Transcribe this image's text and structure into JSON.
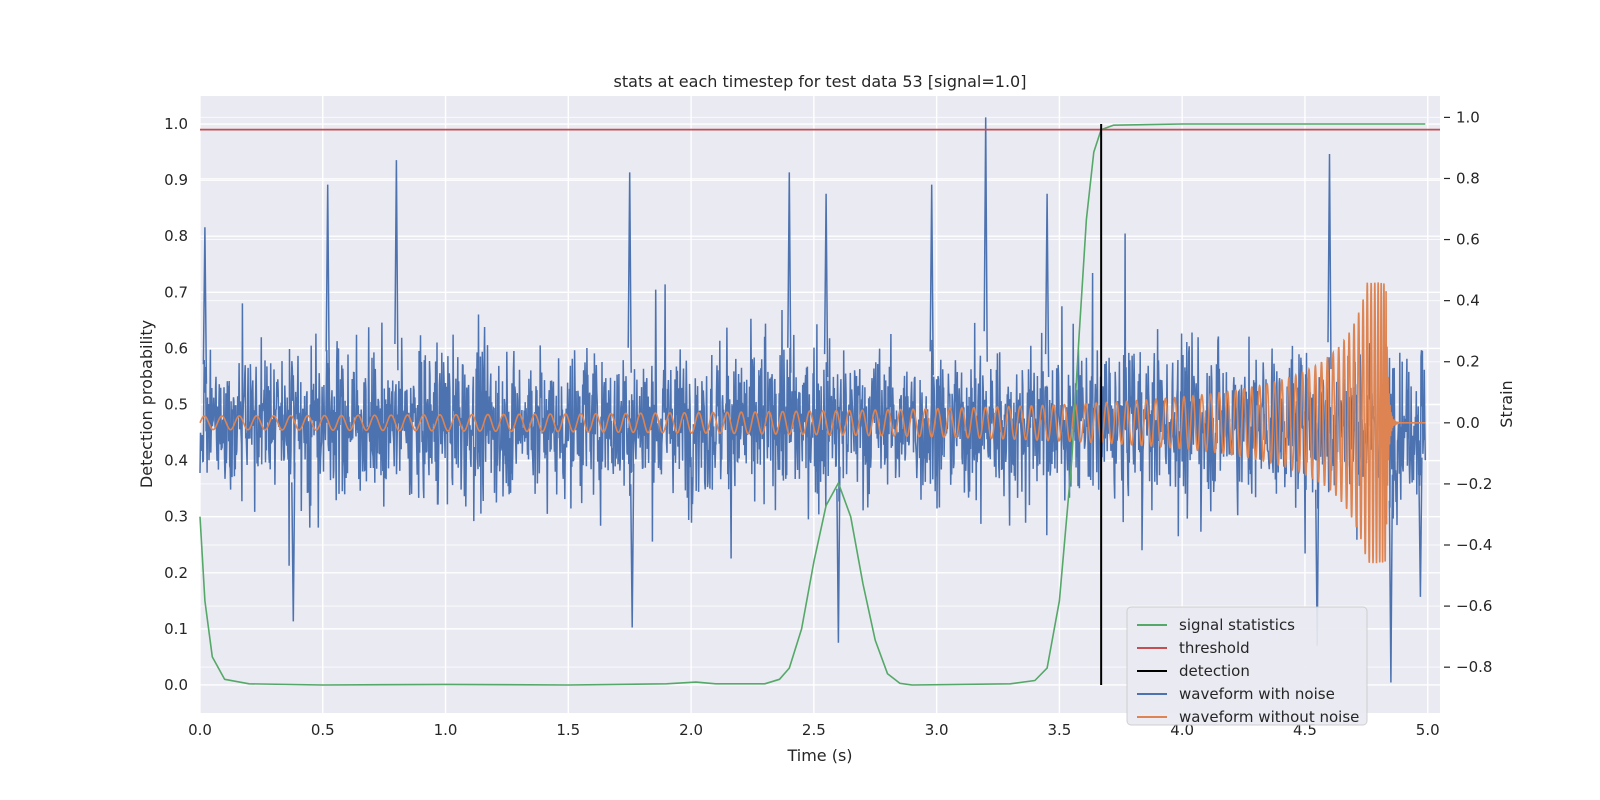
{
  "chart_data": {
    "type": "line",
    "title": "stats at each timestep for test data 53 [signal=1.0]",
    "xlabel": "Time (s)",
    "ylabel_left": "Detection probability",
    "ylabel_right": "Strain",
    "xlim": [
      0.0,
      5.05
    ],
    "ylim_left": [
      -0.05,
      1.05
    ],
    "ylim_right": [
      -0.95,
      1.07
    ],
    "x_ticks": [
      0.0,
      0.5,
      1.0,
      1.5,
      2.0,
      2.5,
      3.0,
      3.5,
      4.0,
      4.5,
      5.0
    ],
    "x_tick_labels": [
      "0.0",
      "0.5",
      "1.0",
      "1.5",
      "2.0",
      "2.5",
      "3.0",
      "3.5",
      "4.0",
      "4.5",
      "5.0"
    ],
    "y_left_ticks": [
      0.0,
      0.1,
      0.2,
      0.3,
      0.4,
      0.5,
      0.6,
      0.7,
      0.8,
      0.9,
      1.0
    ],
    "y_left_tick_labels": [
      "0.0",
      "0.1",
      "0.2",
      "0.3",
      "0.4",
      "0.5",
      "0.6",
      "0.7",
      "0.8",
      "0.9",
      "1.0"
    ],
    "y_right_ticks": [
      -0.8,
      -0.6,
      -0.4,
      -0.2,
      0.0,
      0.2,
      0.4,
      0.6,
      0.8,
      1.0
    ],
    "y_right_tick_labels": [
      "−0.8",
      "−0.6",
      "−0.4",
      "−0.2",
      "0.0",
      "0.2",
      "0.4",
      "0.6",
      "0.8",
      "1.0"
    ],
    "grid": true,
    "legend_position": "lower-right",
    "threshold": 0.99,
    "detection_time": 3.67,
    "series": [
      {
        "name": "signal statistics",
        "axis": "left",
        "color": "#55a868",
        "points": [
          [
            0.0,
            0.3
          ],
          [
            0.02,
            0.15
          ],
          [
            0.05,
            0.05
          ],
          [
            0.1,
            0.01
          ],
          [
            0.2,
            0.002
          ],
          [
            0.5,
            0.0
          ],
          [
            1.0,
            0.001
          ],
          [
            1.5,
            0.0
          ],
          [
            1.9,
            0.002
          ],
          [
            2.02,
            0.005
          ],
          [
            2.1,
            0.002
          ],
          [
            2.3,
            0.002
          ],
          [
            2.36,
            0.01
          ],
          [
            2.4,
            0.03
          ],
          [
            2.45,
            0.1
          ],
          [
            2.5,
            0.22
          ],
          [
            2.55,
            0.32
          ],
          [
            2.6,
            0.36
          ],
          [
            2.65,
            0.3
          ],
          [
            2.7,
            0.18
          ],
          [
            2.75,
            0.08
          ],
          [
            2.8,
            0.02
          ],
          [
            2.85,
            0.003
          ],
          [
            2.9,
            0.0
          ],
          [
            3.3,
            0.002
          ],
          [
            3.4,
            0.008
          ],
          [
            3.45,
            0.03
          ],
          [
            3.5,
            0.15
          ],
          [
            3.55,
            0.4
          ],
          [
            3.58,
            0.62
          ],
          [
            3.61,
            0.83
          ],
          [
            3.64,
            0.95
          ],
          [
            3.67,
            0.99
          ],
          [
            3.72,
            0.998
          ],
          [
            4.0,
            1.0
          ],
          [
            4.99,
            1.0
          ]
        ]
      },
      {
        "name": "threshold",
        "axis": "left",
        "color": "#c44e52",
        "value": 0.99
      },
      {
        "name": "detection",
        "axis": "left",
        "color": "#000000",
        "x": 3.67,
        "y_range": [
          0.0,
          1.0
        ]
      },
      {
        "name": "waveform with noise",
        "axis": "right",
        "color": "#4c72b0",
        "description": "noise-like strain around 0, typical amplitude ±0.3, peaks reaching ~1.0 at t=3.2 and ~0.9 at t=0.8",
        "amplitude": 0.28,
        "peaks": [
          [
            0.02,
            0.64
          ],
          [
            0.8,
            0.86
          ],
          [
            1.75,
            0.82
          ],
          [
            2.4,
            0.82
          ],
          [
            2.98,
            0.78
          ],
          [
            3.2,
            1.0
          ],
          [
            4.6,
            0.88
          ],
          [
            0.52,
            0.78
          ],
          [
            2.55,
            0.75
          ],
          [
            3.45,
            0.75
          ],
          [
            0.38,
            -0.65
          ],
          [
            1.76,
            -0.67
          ],
          [
            2.6,
            -0.72
          ],
          [
            4.55,
            -0.73
          ],
          [
            4.85,
            -0.85
          ],
          [
            4.97,
            -0.57
          ]
        ]
      },
      {
        "name": "waveform without noise",
        "axis": "right",
        "color": "#dd8452",
        "description": "chirp signal: amplitude ~0.02 rising to ~0.45 at merger t≈4.83, then ringdown to 0",
        "merger_time": 4.83,
        "peak_amplitude": 0.46,
        "initial_amplitude": 0.022,
        "initial_frequency_hz": 14
      }
    ]
  }
}
